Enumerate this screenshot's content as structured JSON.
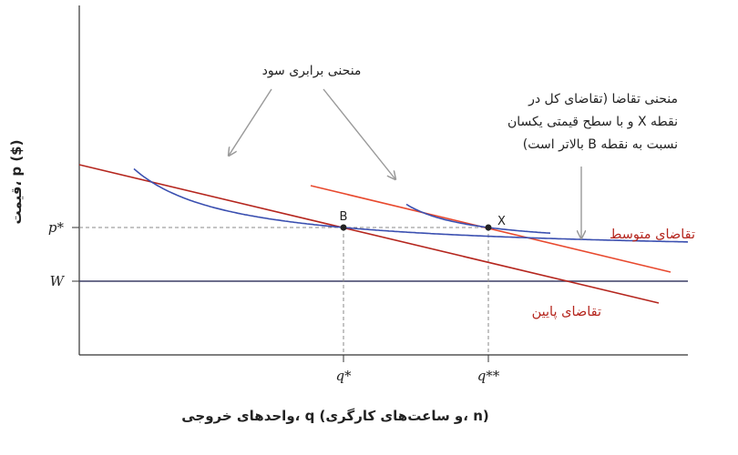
{
  "chart_data": {
    "type": "line",
    "title": "",
    "xlabel": "(n ،و ساعت‌های کارگری) q ،واحدهای خروجی",
    "ylabel": "($) p ،قیمت",
    "x_ticks": [
      "q*",
      "q**"
    ],
    "y_ticks": [
      "p*",
      "W"
    ],
    "grid": false,
    "points": [
      {
        "label": "B",
        "x": "q*",
        "y": "p*"
      },
      {
        "label": "X",
        "x": "q**",
        "y": "p*"
      }
    ],
    "curves": [
      {
        "name": "منحنی برابری سود",
        "kind": "isoprofit",
        "color": "#3a4fb0"
      },
      {
        "name": "تقاضای متوسط",
        "kind": "demand",
        "color": "#e8492e"
      },
      {
        "name": "تقاضای پایین",
        "kind": "demand",
        "color": "#b5261e"
      }
    ],
    "annotations": {
      "isoprofit": "منحنی برابری سود",
      "demand_note": [
        "منحنی تقاضا (تقاضای کل در",
        "نقطه X و با سطح قیمتی یکسان",
        "نسبت به نقطه B بالاتر است)"
      ],
      "medium_demand": "تقاضای متوسط",
      "low_demand": "تقاضای پایین"
    }
  },
  "colors": {
    "axis": "#333333",
    "wage_line": "#3b3e66",
    "isoprofit": "#3a4fb0",
    "medium_demand": "#e8492e",
    "low_demand": "#b5261e",
    "arrow": "#999999"
  }
}
